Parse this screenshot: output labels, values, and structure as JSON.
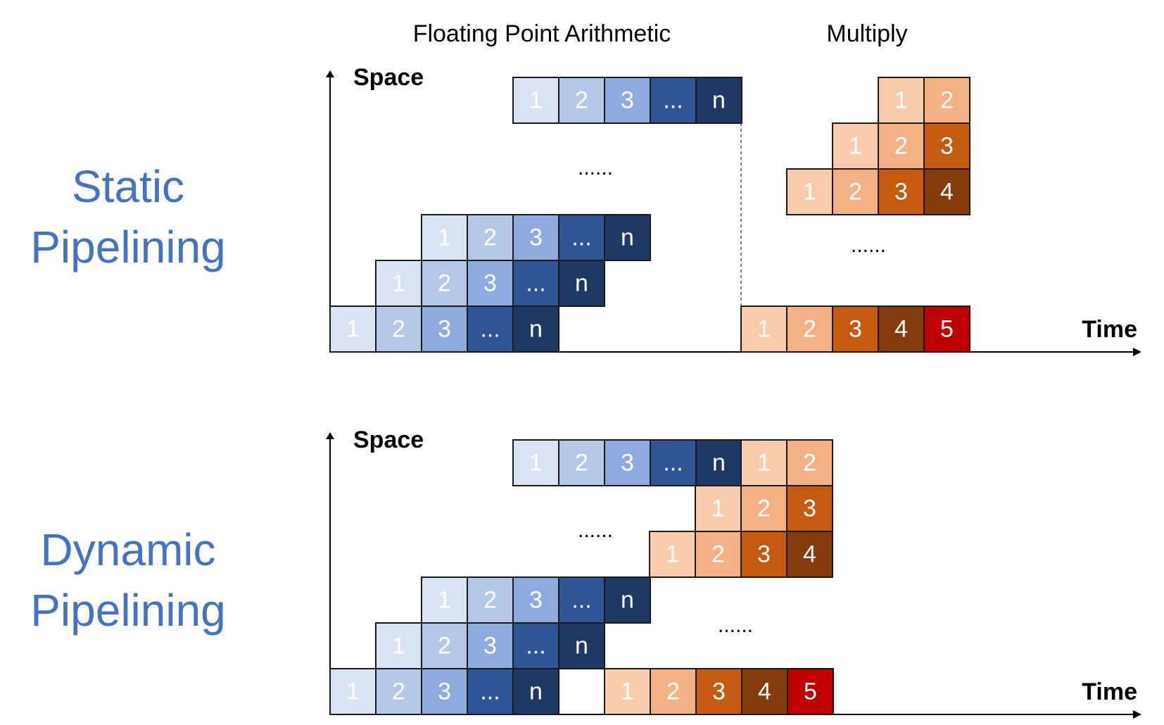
{
  "headers": {
    "floating_point": "Floating Point Arithmetic",
    "multiply": "Multiply"
  },
  "rows": {
    "static": {
      "line1": "Static",
      "line2": "Pipelining"
    },
    "dynamic": {
      "line1": "Dynamic",
      "line2": "Pipelining"
    }
  },
  "axes": {
    "y_label": "Space",
    "x_label": "Time"
  },
  "ellipsis": "......",
  "colors": {
    "blue": [
      "#DAE3F3",
      "#B4C7E7",
      "#8FAADC",
      "#2F5597",
      "#1F3864"
    ],
    "orange": [
      "#F8CBAD",
      "#F4B183",
      "#C55A11",
      "#843C0C",
      "#C00000"
    ],
    "blue_text": [
      "#ffffff",
      "#ffffff",
      "#ffffff",
      "#ffffff",
      "#ffffff"
    ],
    "label_blue": "#4472C4"
  },
  "fp_stage_labels": [
    "1",
    "2",
    "3",
    "...",
    "n"
  ],
  "mul_stage_labels": [
    "1",
    "2",
    "3",
    "4",
    "5"
  ]
}
